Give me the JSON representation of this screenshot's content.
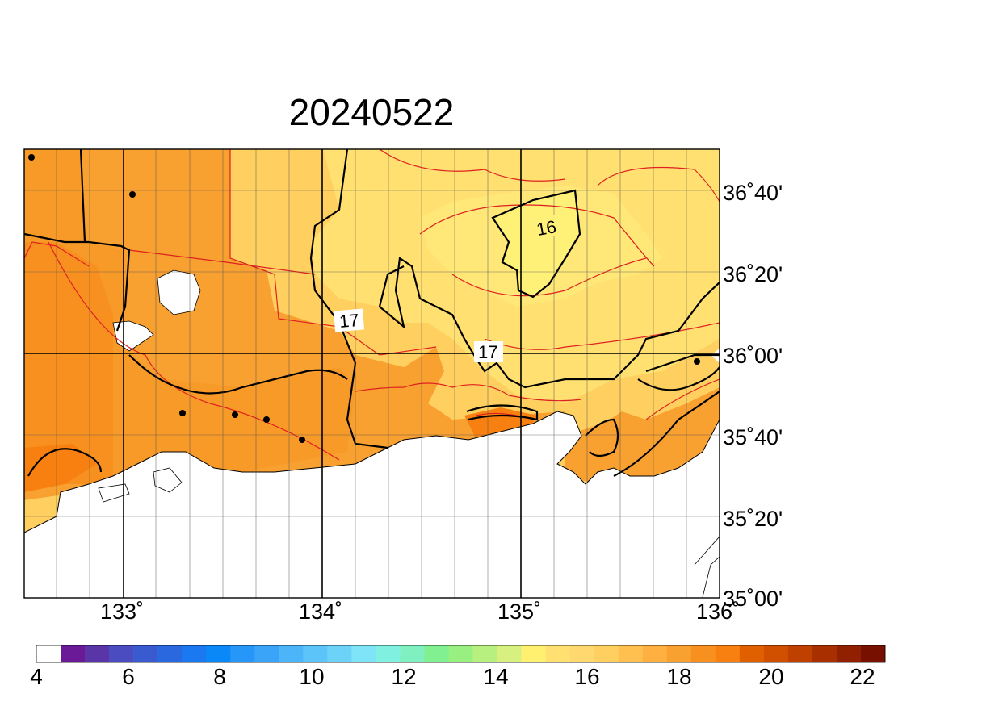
{
  "title": "20240522",
  "map": {
    "lon_ticks": [
      "133˚",
      "134˚",
      "135˚",
      "136˚"
    ],
    "lat_ticks": [
      "36˚40'",
      "36˚20'",
      "36˚00'",
      "35˚40'",
      "35˚20'",
      "35˚00'"
    ],
    "contour_labels": [
      "16",
      "17",
      "17"
    ]
  },
  "colorbar": {
    "labels": [
      "4",
      "6",
      "8",
      "10",
      "12",
      "14",
      "16",
      "18",
      "20",
      "22"
    ],
    "colors": [
      "#ffffff",
      "#6a1a96",
      "#5a35a8",
      "#4a4cc0",
      "#3a5ad0",
      "#2a68e0",
      "#1a78f0",
      "#0a88f8",
      "#2696f8",
      "#3aa4f8",
      "#4cb4f8",
      "#5cc4f8",
      "#6cd2f8",
      "#80e4f8",
      "#80f0e0",
      "#80f0c0",
      "#80f090",
      "#98f080",
      "#b8f080",
      "#d8f080",
      "#fff070",
      "#ffe070",
      "#ffd870",
      "#ffd060",
      "#ffc050",
      "#ffb040",
      "#f8a030",
      "#f89020",
      "#f88010",
      "#e06000",
      "#d05000",
      "#c04000",
      "#a83000",
      "#902000",
      "#781000"
    ]
  }
}
